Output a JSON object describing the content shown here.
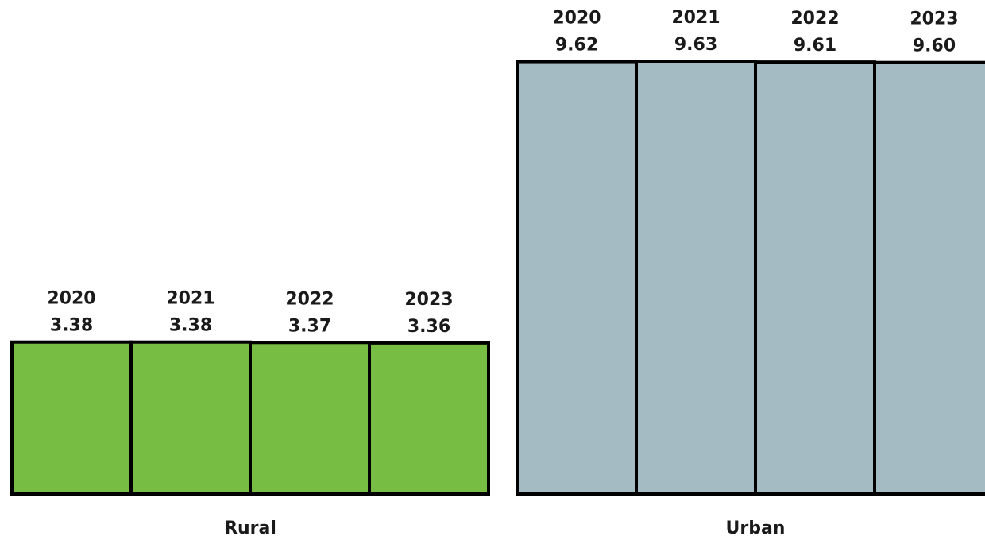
{
  "chart_data": {
    "type": "bar",
    "categories": [
      "2020",
      "2021",
      "2022",
      "2023"
    ],
    "groups": [
      {
        "name": "Rural",
        "values": [
          3.38,
          3.38,
          3.37,
          3.36
        ],
        "value_labels": [
          "3.38",
          "3.38",
          "3.37",
          "3.36"
        ],
        "color": "#78bd43"
      },
      {
        "name": "Urban",
        "values": [
          9.62,
          9.63,
          9.61,
          9.6
        ],
        "value_labels": [
          "9.62",
          "9.63",
          "9.61",
          "9.60"
        ],
        "color": "#a4bbc3"
      }
    ],
    "ylim": [
      0,
      9.63
    ],
    "grid": false,
    "legend": "none"
  }
}
